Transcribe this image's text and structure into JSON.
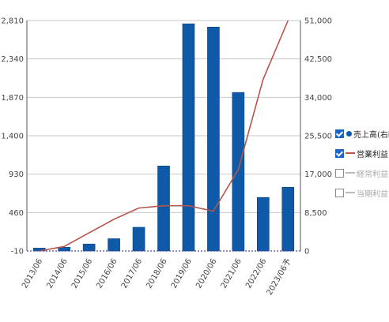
{
  "chart_data": {
    "type": "bar",
    "categories": [
      "2013/06",
      "2014/06",
      "2015/06",
      "2016/06",
      "2017/06",
      "2018/06",
      "2019/06",
      "2020/06",
      "2021/06",
      "2022/06",
      "2023/06予"
    ],
    "y_left": {
      "ticks": [
        "2,810",
        "2,340",
        "1,870",
        "1,400",
        "930",
        "460",
        "-10"
      ],
      "ylim": [
        -10,
        2810
      ]
    },
    "y_right": {
      "ticks": [
        "51,000",
        "42,500",
        "34,000",
        "25,500",
        "17,000",
        "8,500",
        "0"
      ],
      "ylim": [
        0,
        51000
      ]
    },
    "series": [
      {
        "name": "売上高(右軸)",
        "kind": "bar",
        "axis": "left",
        "color": "#0e5aa8",
        "values": [
          25,
          35,
          75,
          140,
          280,
          1030,
          2770,
          2730,
          1930,
          645,
          770
        ]
      },
      {
        "name": "営業利益",
        "kind": "line",
        "axis": "right",
        "color": "#b5564d",
        "values": [
          0,
          1000,
          4000,
          7000,
          9500,
          10000,
          10000,
          8800,
          18000,
          38000,
          51000
        ]
      }
    ],
    "legend": {
      "placement": "right",
      "items": [
        {
          "label": "売上高(右軸)",
          "checked": true,
          "marker": "dot"
        },
        {
          "label": "営業利益",
          "checked": true,
          "marker": "line"
        },
        {
          "label": "経常利益",
          "checked": false,
          "marker": "line"
        },
        {
          "label": "当期利益",
          "checked": false,
          "marker": "line"
        }
      ]
    },
    "grid": true
  }
}
